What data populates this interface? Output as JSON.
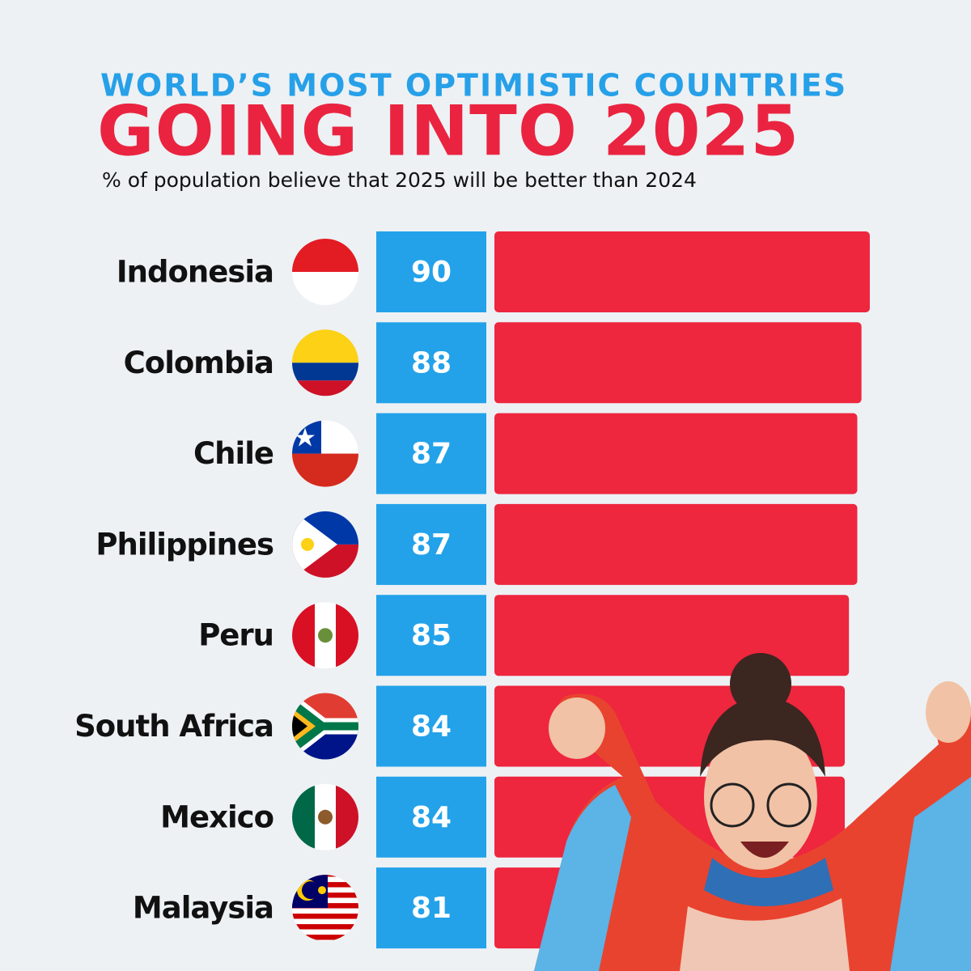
{
  "chart_data": {
    "type": "bar",
    "title": "WORLD’S MOST OPTIMISTIC COUNTRIES",
    "subtitle": "GOING INTO 2025",
    "description": "% of population believe that 2025 will be better than 2024",
    "categories": [
      "Indonesia",
      "Colombia",
      "Chile",
      "Philippines",
      "Peru",
      "South Africa",
      "Mexico",
      "Malaysia"
    ],
    "values": [
      90,
      88,
      87,
      87,
      85,
      84,
      84,
      81
    ],
    "color": "#ee263e",
    "label_box_color": "#23a2ea"
  }
}
